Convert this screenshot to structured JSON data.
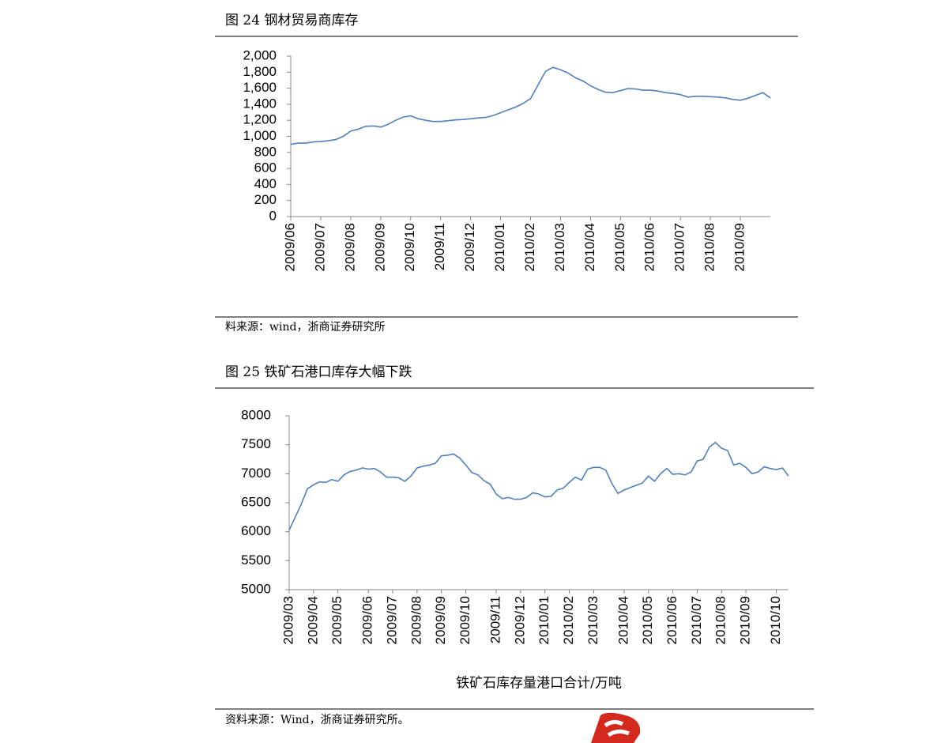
{
  "chart_data": [
    {
      "type": "line",
      "title": "图 24 钢材贸易商库存",
      "source": "料来源：wind，浙商证券研究所",
      "color": "#4f81bd",
      "categories": [
        "2009/06",
        null,
        null,
        null,
        "2009/07",
        null,
        null,
        null,
        "2009/08",
        null,
        null,
        null,
        "2009/09",
        null,
        null,
        null,
        "2009/10",
        null,
        null,
        null,
        "2009/11",
        null,
        null,
        null,
        "2009/12",
        null,
        null,
        null,
        "2010/01",
        null,
        null,
        null,
        "2010/02",
        null,
        null,
        null,
        "2010/03",
        null,
        null,
        null,
        "2010/04",
        null,
        null,
        null,
        "2010/05",
        null,
        null,
        null,
        "2010/06",
        null,
        null,
        null,
        "2010/07",
        null,
        null,
        null,
        "2010/08",
        null,
        null,
        null,
        "2010/09",
        null,
        null,
        null,
        null
      ],
      "values": [
        900,
        915,
        915,
        930,
        935,
        945,
        960,
        1000,
        1065,
        1090,
        1125,
        1130,
        1115,
        1150,
        1200,
        1240,
        1255,
        1220,
        1200,
        1185,
        1185,
        1195,
        1205,
        1210,
        1220,
        1230,
        1235,
        1260,
        1295,
        1330,
        1365,
        1410,
        1470,
        1640,
        1810,
        1860,
        1830,
        1790,
        1730,
        1690,
        1630,
        1585,
        1550,
        1545,
        1570,
        1595,
        1590,
        1575,
        1575,
        1565,
        1545,
        1535,
        1520,
        1490,
        1500,
        1500,
        1495,
        1490,
        1480,
        1460,
        1450,
        1475,
        1510,
        1545,
        1480
      ],
      "ylim": [
        0,
        2000
      ],
      "yticks": [
        0,
        200,
        400,
        600,
        800,
        {
          "value": 1000,
          "label": "1,000"
        },
        {
          "value": 1200,
          "label": "1,200"
        },
        {
          "value": 1400,
          "label": "1,400"
        },
        {
          "value": 1600,
          "label": "1,600"
        },
        {
          "value": 1800,
          "label": "1,800"
        },
        {
          "value": 2000,
          "label": "2,000"
        }
      ],
      "grid": false
    },
    {
      "type": "line",
      "title": "图 25 铁矿石港口库存大幅下跌",
      "source": "资料来源：Wind，浙商证券研究所。",
      "categories": [
        "2009/03",
        null,
        null,
        null,
        "2009/04",
        null,
        null,
        null,
        "2009/05",
        null,
        null,
        null,
        null,
        "2009/06",
        null,
        null,
        null,
        "2009/07",
        null,
        null,
        null,
        "2009/08",
        null,
        null,
        null,
        "2009/09",
        null,
        null,
        null,
        "2009/10",
        null,
        null,
        null,
        null,
        "2009/11",
        null,
        null,
        null,
        "2009/12",
        null,
        null,
        null,
        "2010/01",
        null,
        null,
        null,
        "2010/02",
        null,
        null,
        null,
        "2010/03",
        null,
        null,
        null,
        null,
        "2010/04",
        null,
        null,
        null,
        "2010/05",
        null,
        null,
        null,
        "2010/06",
        null,
        null,
        null,
        "2010/07",
        null,
        null,
        null,
        "2010/08",
        null,
        null,
        null,
        "2010/09",
        null,
        null,
        null,
        null,
        "2010/10",
        null,
        null
      ],
      "series": [
        {
          "name": "铁矿石库存量港口合计/万吨",
          "color": "#4f81bd",
          "values": [
            6030,
            6250,
            6480,
            6740,
            6810,
            6860,
            6850,
            6900,
            6870,
            6980,
            7040,
            7060,
            7100,
            7080,
            7090,
            7030,
            6940,
            6940,
            6930,
            6870,
            6960,
            7100,
            7130,
            7150,
            7180,
            7310,
            7320,
            7340,
            7270,
            7150,
            7020,
            6980,
            6880,
            6820,
            6650,
            6570,
            6590,
            6560,
            6560,
            6590,
            6670,
            6650,
            6600,
            6610,
            6720,
            6750,
            6850,
            6940,
            6890,
            7080,
            7110,
            7110,
            7060,
            6830,
            6660,
            6720,
            6760,
            6800,
            6840,
            6960,
            6870,
            7000,
            7090,
            6990,
            7000,
            6980,
            7030,
            7220,
            7250,
            7460,
            7540,
            7440,
            7400,
            7150,
            7180,
            7110,
            7000,
            7030,
            7120,
            7090,
            7070,
            7100,
            6960
          ]
        }
      ],
      "ylim": [
        5000,
        8000
      ],
      "yticks": [
        5000,
        5500,
        6000,
        6500,
        7000,
        7500,
        8000
      ],
      "grid": false
    }
  ]
}
